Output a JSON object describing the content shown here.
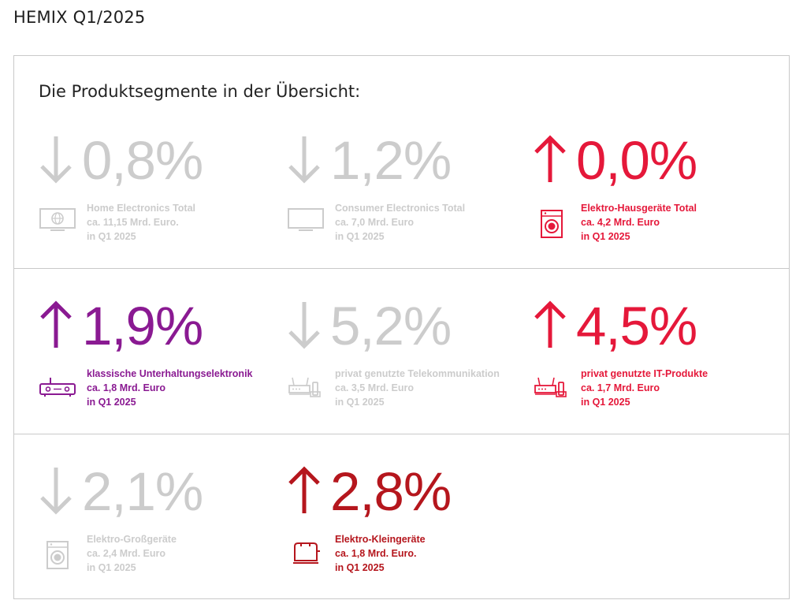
{
  "page": {
    "title": "HEMIX Q1/2025"
  },
  "card": {
    "heading": "Die Produktsegmente in der Übersicht:"
  },
  "colors": {
    "gray": "#cccccc",
    "red": "#e5183a",
    "purple": "#8a1a92",
    "darkred": "#b5161d"
  },
  "segments": [
    {
      "direction": "down",
      "percent": "0,8%",
      "icon": "tv-globe-icon",
      "color": "#cccccc",
      "name": "Home Electronics Total",
      "volume": "ca. 11,15 Mrd. Euro.",
      "period": "in Q1 2025"
    },
    {
      "direction": "down",
      "percent": "1,2%",
      "icon": "tv-icon",
      "color": "#cccccc",
      "name": "Consumer Electronics Total",
      "volume": "ca. 7,0 Mrd. Euro",
      "period": "in Q1 2025"
    },
    {
      "direction": "up",
      "percent": "0,0%",
      "icon": "washing-machine-icon",
      "color": "#e5183a",
      "name": "Elektro-Hausgeräte Total",
      "volume": "ca. 4,2 Mrd. Euro",
      "period": "in Q1 2025"
    },
    {
      "direction": "up",
      "percent": "1,9%",
      "icon": "receiver-icon",
      "color": "#8a1a92",
      "name": "klassische Unterhaltungselektronik",
      "volume": "ca. 1,8 Mrd. Euro",
      "period": "in Q1 2025"
    },
    {
      "direction": "down",
      "percent": "5,2%",
      "icon": "router-phone-icon",
      "color": "#cccccc",
      "name": "privat genutzte Telekommunikation",
      "volume": "ca. 3,5 Mrd. Euro",
      "period": "in Q1 2025"
    },
    {
      "direction": "up",
      "percent": "4,5%",
      "icon": "router-phone-icon",
      "color": "#e5183a",
      "name": "privat genutzte IT-Produkte",
      "volume": "ca. 1,7 Mrd. Euro",
      "period": "in Q1 2025"
    },
    {
      "direction": "down",
      "percent": "2,1%",
      "icon": "washing-machine-icon",
      "color": "#cccccc",
      "name": "Elektro-Großgeräte",
      "volume": "ca. 2,4 Mrd. Euro",
      "period": "in Q1 2025"
    },
    {
      "direction": "up",
      "percent": "2,8%",
      "icon": "toaster-icon",
      "color": "#b5161d",
      "name": "Elektro-Kleingeräte",
      "volume": "ca. 1,8 Mrd. Euro.",
      "period": "in Q1 2025"
    }
  ]
}
